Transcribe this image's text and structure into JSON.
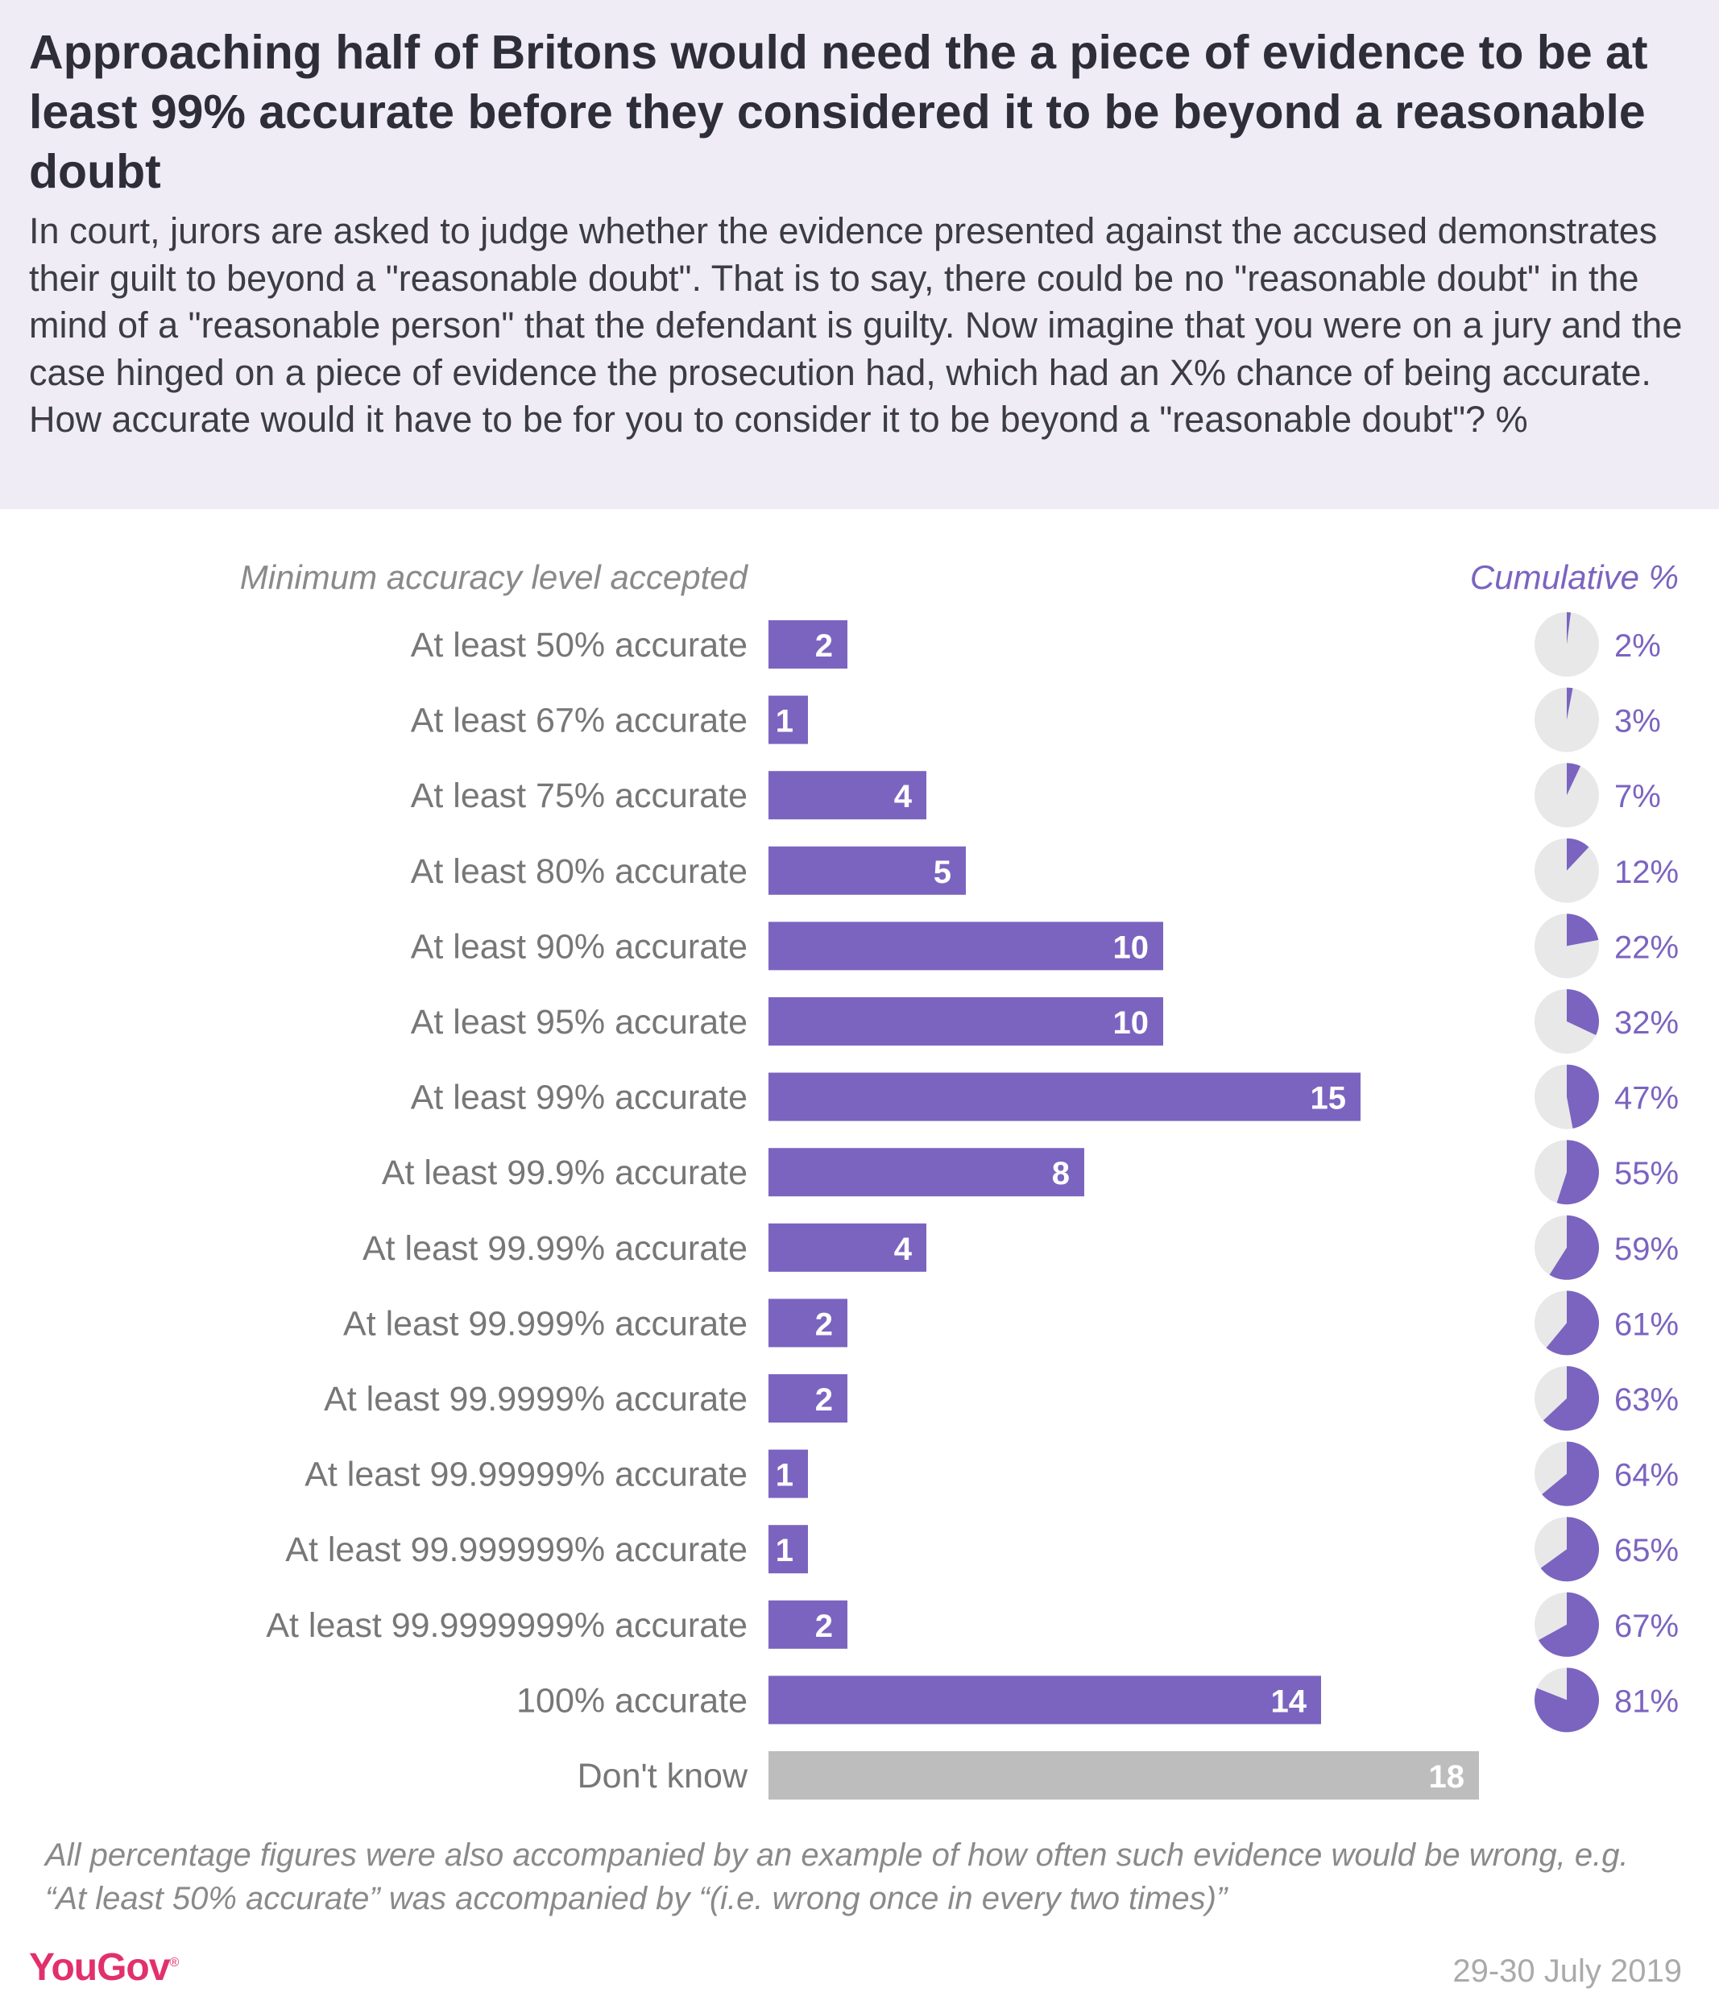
{
  "title": "Approaching half of Britons would need the a piece of evidence to be at least 99% accurate before they considered it to be beyond a reasonable doubt",
  "subtitle": "In court, jurors are asked to judge whether the evidence presented against the accused demonstrates their guilt to beyond a \"reasonable doubt\". That is to say, there could be no \"reasonable doubt\" in the mind of a \"reasonable person\" that the defendant is guilty. Now imagine that you were on a jury and the case hinged on a piece of evidence the prosecution had, which had an X% chance of being accurate. How accurate would it have to be for you to consider it to be beyond a \"reasonable doubt\"? %",
  "left_header": "Minimum accuracy level accepted",
  "right_header": "Cumulative %",
  "footnote": "All percentage figures were also accompanied by an example of how often such evidence would be wrong, e.g. “At least 50% accurate” was accompanied by “(i.e. wrong once in every two times)”",
  "brand": "YouGov",
  "date": "29-30 July 2019",
  "colors": {
    "bar": "#7b64c0",
    "dont_know_bar": "#bdbdbd",
    "pie_background": "#e8e8e8",
    "cumulative_text": "#7b64c0",
    "header_background": "#efecf5",
    "brand": "#e2306c"
  },
  "chart_data": {
    "type": "bar",
    "orientation": "horizontal",
    "categories": [
      "At least 50% accurate",
      "At least 67% accurate",
      "At least 75% accurate",
      "At least 80% accurate",
      "At least 90% accurate",
      "At least 95% accurate",
      "At least 99% accurate",
      "At least 99.9% accurate",
      "At least 99.99% accurate",
      "At least 99.999% accurate",
      "At least 99.9999% accurate",
      "At least 99.99999% accurate",
      "At least 99.999999% accurate",
      "At least 99.9999999% accurate",
      "100% accurate",
      "Don't know"
    ],
    "values": [
      2,
      1,
      4,
      5,
      10,
      10,
      15,
      8,
      4,
      2,
      2,
      1,
      1,
      2,
      14,
      18
    ],
    "cumulative": [
      2,
      3,
      7,
      12,
      22,
      32,
      47,
      55,
      59,
      61,
      63,
      64,
      65,
      67,
      81,
      null
    ],
    "cumulative_labels": [
      "2%",
      "3%",
      "7%",
      "12%",
      "22%",
      "32%",
      "47%",
      "55%",
      "59%",
      "61%",
      "63%",
      "64%",
      "65%",
      "67%",
      "81%",
      ""
    ],
    "highlight_gray": [
      "Don't know"
    ],
    "xlim": [
      0,
      18
    ]
  }
}
